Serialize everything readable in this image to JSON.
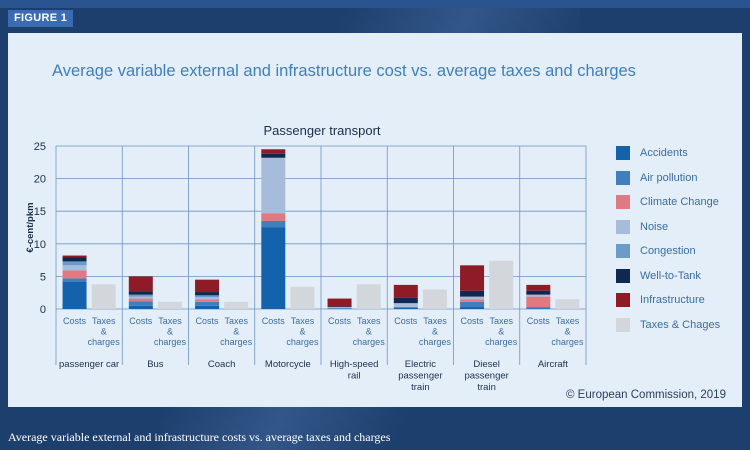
{
  "figure_label": "FIGURE 1",
  "main_title": "Average variable external and infrastructure cost vs. average taxes and charges",
  "caption": "Average variable external and infrastructure costs vs. average taxes and charges",
  "credit": "© European Commission, 2019",
  "colors": {
    "accidents": "#1461ac",
    "air_pollution": "#3f7fbd",
    "climate_change": "#e07a80",
    "noise": "#a7bcdb",
    "congestion": "#6b9cc8",
    "well_to_tank": "#0f2850",
    "infrastructure": "#8e1b26",
    "taxes": "#d3d7dc"
  },
  "legend": [
    {
      "key": "accidents",
      "label": "Accidents",
      "color": "#1461ac"
    },
    {
      "key": "air_pollution",
      "label": "Air pollution",
      "color": "#3f7fbd"
    },
    {
      "key": "climate_change",
      "label": "Climate Change",
      "color": "#e07a80"
    },
    {
      "key": "noise",
      "label": "Noise",
      "color": "#a7bcdb"
    },
    {
      "key": "congestion",
      "label": "Congestion",
      "color": "#6b9cc8"
    },
    {
      "key": "well_to_tank",
      "label": "Well-to-Tank",
      "color": "#0f2850"
    },
    {
      "key": "infrastructure",
      "label": "Infrastructure",
      "color": "#8e1b26"
    },
    {
      "key": "taxes",
      "label": "Taxes & Chages",
      "color": "#d3d7dc"
    }
  ],
  "chart_data": {
    "type": "bar",
    "title": "Passenger transport",
    "ylabel": "€-cent/pkm",
    "xlabel": "",
    "ylim": [
      0,
      25
    ],
    "yticks": [
      0,
      5,
      10,
      15,
      20,
      25
    ],
    "grid": true,
    "bar_labels": [
      "Costs",
      "Taxes & charges"
    ],
    "categories": [
      "passenger car",
      "Bus",
      "Coach",
      "Motorcycle",
      "High-speed rail",
      "Electric passenger train",
      "Diesel passenger train",
      "Aircraft"
    ],
    "category_label_lines": [
      [
        "passenger car"
      ],
      [
        "Bus"
      ],
      [
        "Coach"
      ],
      [
        "Motorcycle"
      ],
      [
        "High-speed",
        "rail"
      ],
      [
        "Electric",
        "passenger",
        "train"
      ],
      [
        "Diesel",
        "passenger",
        "train"
      ],
      [
        "Aircraft"
      ]
    ],
    "stack_order": [
      "accidents",
      "air_pollution",
      "climate_change",
      "noise",
      "congestion",
      "well_to_tank",
      "infrastructure"
    ],
    "series": [
      {
        "name": "Accidents",
        "key": "accidents",
        "values": [
          4.2,
          0.5,
          0.5,
          12.5,
          0.1,
          0.2,
          0.3,
          0.1
        ]
      },
      {
        "name": "Air pollution",
        "key": "air_pollution",
        "values": [
          0.5,
          0.7,
          0.6,
          1.0,
          0.0,
          0.1,
          0.8,
          0.2
        ]
      },
      {
        "name": "Climate Change",
        "key": "climate_change",
        "values": [
          1.2,
          0.4,
          0.4,
          1.2,
          0.0,
          0.0,
          0.4,
          1.6
        ]
      },
      {
        "name": "Noise",
        "key": "noise",
        "values": [
          0.8,
          0.3,
          0.3,
          8.5,
          0.2,
          0.6,
          0.4,
          0.3
        ]
      },
      {
        "name": "Congestion",
        "key": "congestion",
        "values": [
          0.6,
          0.3,
          0.3,
          0.0,
          0.0,
          0.0,
          0.0,
          0.0
        ]
      },
      {
        "name": "Well-to-Tank",
        "key": "well_to_tank",
        "values": [
          0.6,
          0.5,
          0.5,
          0.6,
          0.1,
          0.8,
          0.9,
          0.6
        ]
      },
      {
        "name": "Infrastructure",
        "key": "infrastructure",
        "values": [
          0.3,
          2.3,
          1.9,
          0.7,
          1.2,
          2.0,
          3.9,
          0.9
        ]
      },
      {
        "name": "Taxes & Chages",
        "key": "taxes",
        "values": [
          3.8,
          1.1,
          1.1,
          3.4,
          3.8,
          3.0,
          7.4,
          1.5
        ]
      }
    ]
  }
}
